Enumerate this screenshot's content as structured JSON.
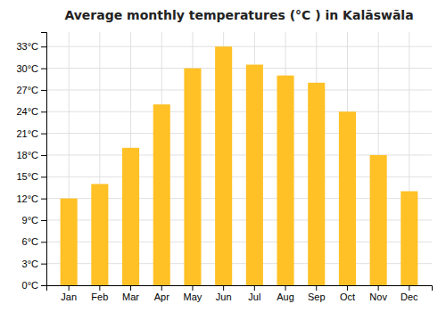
{
  "chart_data": {
    "type": "bar",
    "title": "Average monthly temperatures (°C ) in Kalāswāla",
    "categories": [
      "Jan",
      "Feb",
      "Mar",
      "Apr",
      "May",
      "Jun",
      "Jul",
      "Aug",
      "Sep",
      "Oct",
      "Nov",
      "Dec"
    ],
    "values": [
      12,
      14,
      19,
      25,
      30,
      33,
      30.5,
      29,
      28,
      24,
      18,
      13
    ],
    "color": "#FFC125",
    "ylim": [
      0,
      35
    ],
    "yticks": [
      {
        "value": 0,
        "label": "0°C"
      },
      {
        "value": 3,
        "label": "3°C"
      },
      {
        "value": 6,
        "label": "6°C"
      },
      {
        "value": 9,
        "label": "9°C"
      },
      {
        "value": 12,
        "label": "12°C"
      },
      {
        "value": 15,
        "label": "15°C"
      },
      {
        "value": 18,
        "label": "18°C"
      },
      {
        "value": 21,
        "label": "21°C"
      },
      {
        "value": 24,
        "label": "24°C"
      },
      {
        "value": 27,
        "label": "27°C"
      },
      {
        "value": 30,
        "label": "30°C"
      },
      {
        "value": 33,
        "label": "33°C"
      }
    ],
    "grid": true
  }
}
